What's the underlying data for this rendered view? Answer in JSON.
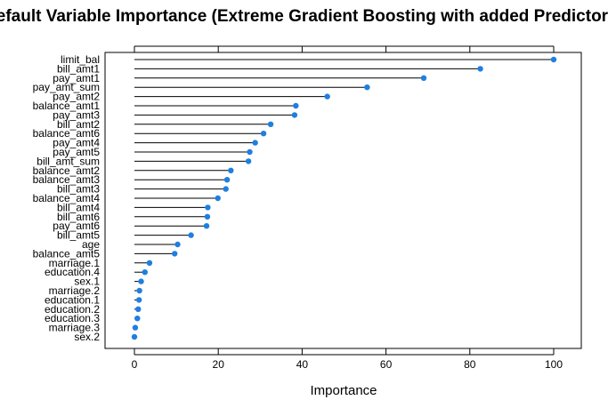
{
  "chart_data": {
    "type": "dot",
    "title": "Default Variable Importance (Extreme Gradient Boosting with added Predictors)",
    "xlabel": "Importance",
    "ylabel": "",
    "xlim": [
      0,
      100
    ],
    "x_ticks": [
      0,
      20,
      40,
      60,
      80,
      100
    ],
    "point_color": "#1f7fe0",
    "grid": false,
    "categories": [
      "limit_bal",
      "bill_amt1",
      "pay_amt1",
      "pay_amt_sum",
      "pay_amt2",
      "balance_amt1",
      "pay_amt3",
      "bill_amt2",
      "balance_amt6",
      "pay_amt4",
      "pay_amt5",
      "bill_amt_sum",
      "balance_amt2",
      "balance_amt3",
      "bill_amt3",
      "balance_amt4",
      "bill_amt4",
      "bill_amt6",
      "pay_amt6",
      "bill_amt5",
      "age",
      "balance_amt5",
      "marriage.1",
      "education.4",
      "sex.1",
      "marriage.2",
      "education.1",
      "education.2",
      "education.3",
      "marriage.3",
      "sex.2"
    ],
    "values": [
      100,
      82.5,
      69,
      55.5,
      46,
      38.5,
      38.2,
      32.5,
      30.8,
      28.8,
      27.5,
      27.2,
      23,
      22.1,
      21.8,
      19.9,
      17.5,
      17.4,
      17.2,
      13.5,
      10.3,
      9.6,
      3.6,
      2.5,
      1.6,
      1.2,
      1.1,
      0.9,
      0.7,
      0.2,
      0
    ]
  }
}
